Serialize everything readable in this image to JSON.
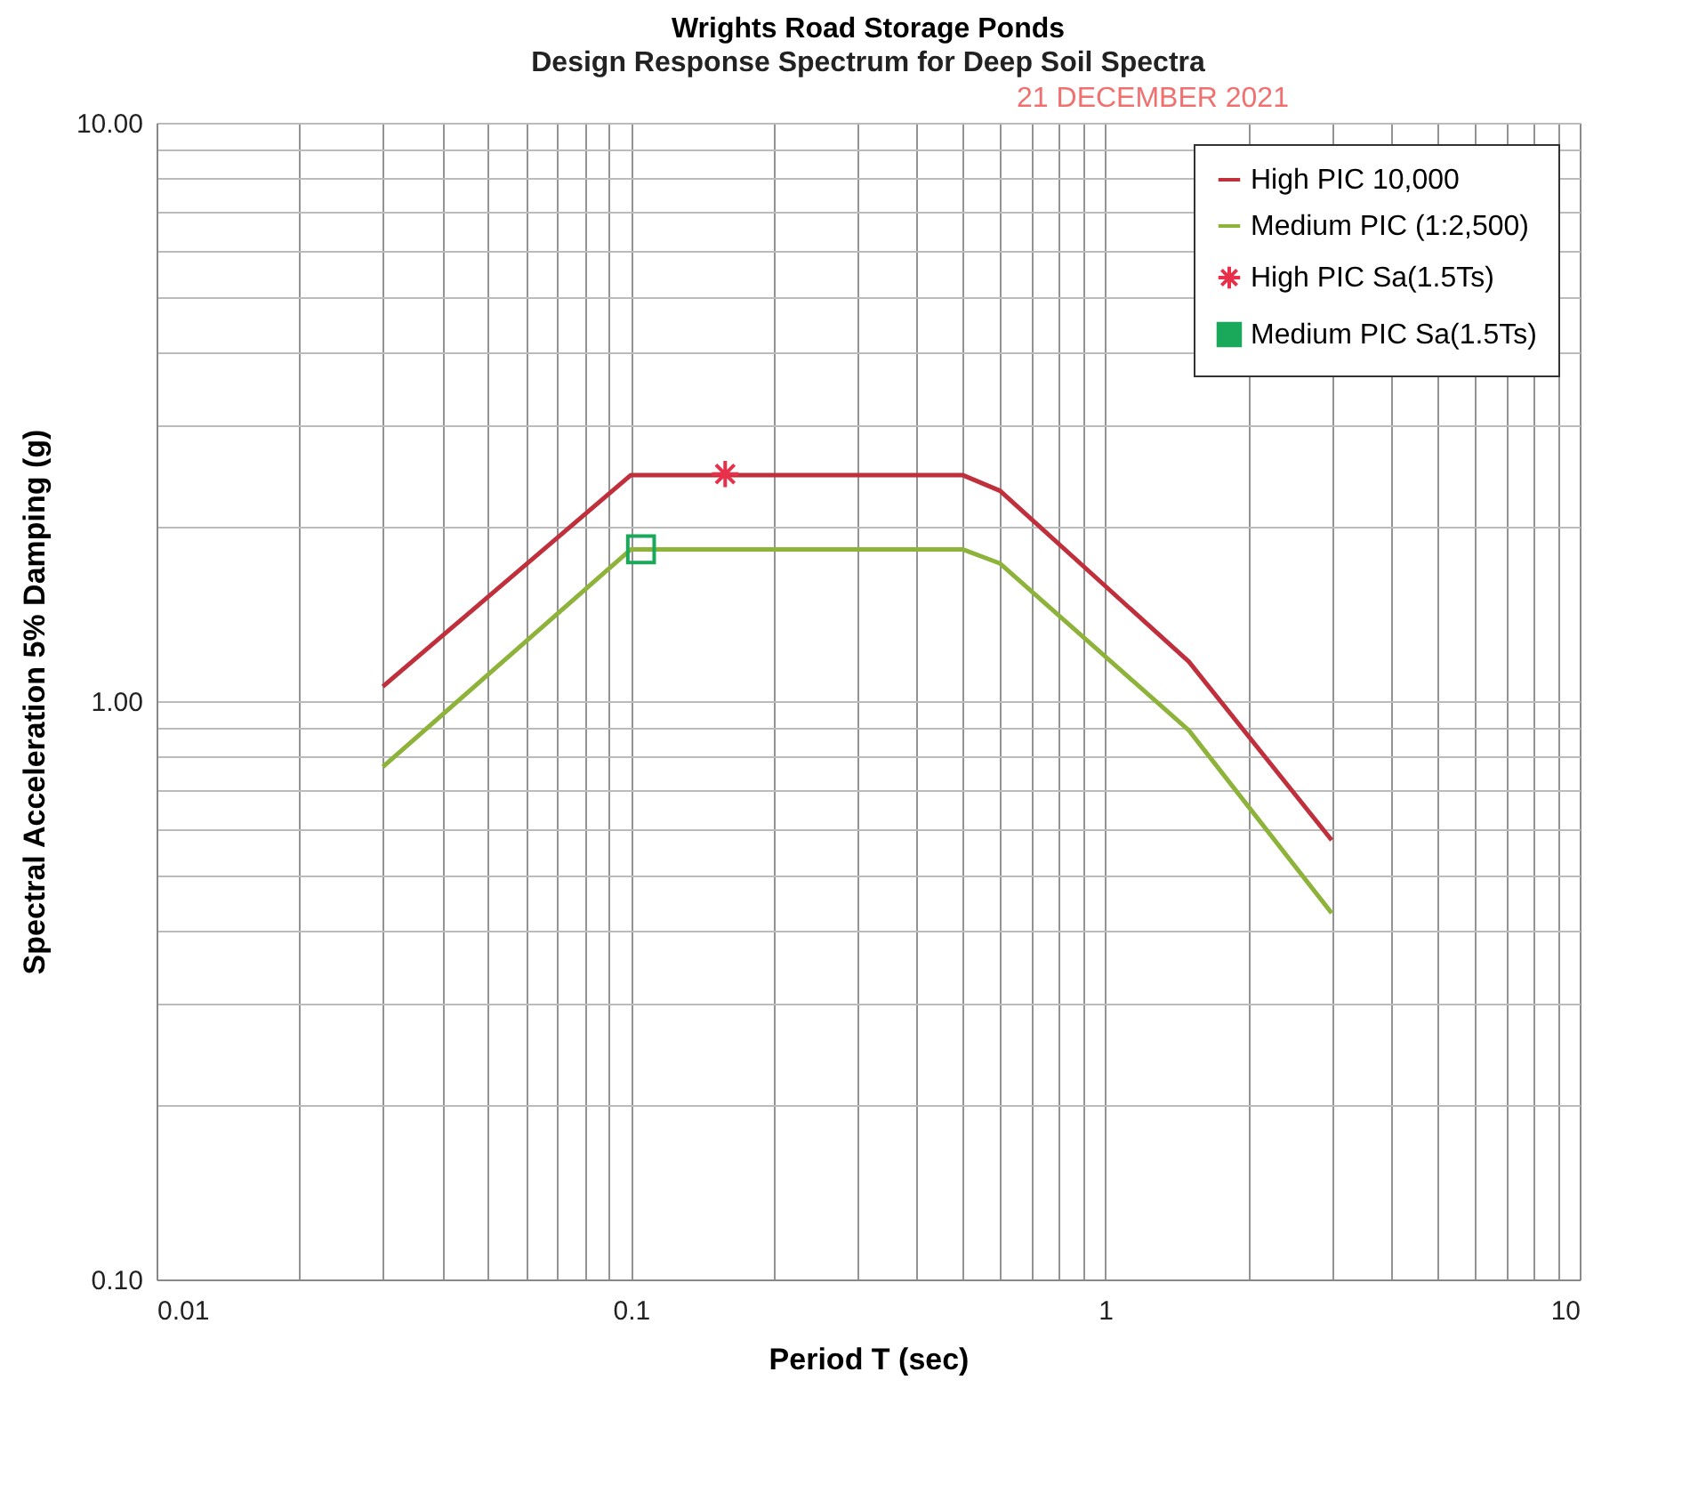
{
  "chart_data": {
    "type": "line",
    "title": "Wrights Road Storage Ponds",
    "subtitle": "Design Response Spectrum for Deep Soil Spectra",
    "xlabel": "Period T (sec)",
    "ylabel": "Spectral Acceleration 5% Damping (g)",
    "annotations": [
      "21 DECEMBER 2021"
    ],
    "series": [
      {
        "name": "High PIC 10,000",
        "color": "#c0303c",
        "marker": "none",
        "x": [
          0.03,
          0.1,
          0.5,
          0.6,
          1.5,
          3
        ],
        "values": [
          1.06,
          2.46,
          2.46,
          2.31,
          1.17,
          0.575
        ]
      },
      {
        "name": "Medium PIC (1:2,500)",
        "color": "#8db33a",
        "marker": "none",
        "x": [
          0.03,
          0.1,
          0.5,
          0.6,
          1.5,
          3
        ],
        "values": [
          0.77,
          1.83,
          1.83,
          1.73,
          0.89,
          0.43
        ]
      },
      {
        "name": "High PIC Sa(1.5Ts)",
        "color": "#e8304a",
        "type": "scatter",
        "marker": "cross",
        "x": [
          0.158
        ],
        "values": [
          2.47
        ]
      },
      {
        "name": "Medium PIC Sa(1.5Ts)",
        "color": "#1aa85a",
        "type": "scatter",
        "marker": "square",
        "x": [
          0.105
        ],
        "values": [
          1.83
        ]
      }
    ],
    "log": "xy",
    "xlim": [
      0.01,
      10
    ],
    "ylim": [
      0.1,
      10
    ],
    "xticks": [
      0.01,
      {
        "value": 0.02,
        "label": null
      },
      {
        "value": 0.03,
        "label": null
      },
      {
        "value": 0.04,
        "label": null
      },
      {
        "value": 0.05,
        "label": null
      },
      {
        "value": 0.06,
        "label": null
      },
      {
        "value": 0.07,
        "label": null
      },
      {
        "value": 0.08,
        "label": null
      },
      {
        "value": 0.09,
        "label": null
      },
      0.1,
      {
        "value": 0.2,
        "label": null
      },
      {
        "value": 0.3,
        "label": null
      },
      {
        "value": 0.4,
        "label": null
      },
      {
        "value": 0.5,
        "label": null
      },
      {
        "value": 0.6,
        "label": null
      },
      {
        "value": 0.7,
        "label": null
      },
      {
        "value": 0.8,
        "label": null
      },
      {
        "value": 0.9,
        "label": null
      },
      1,
      {
        "value": 2,
        "label": null
      },
      {
        "value": 3,
        "label": null
      },
      {
        "value": 4,
        "label": null
      },
      {
        "value": 5,
        "label": null
      },
      {
        "value": 6,
        "label": null
      },
      {
        "value": 7,
        "label": null
      },
      {
        "value": 8,
        "label": null
      },
      {
        "value": 9,
        "label": null
      },
      10
    ],
    "yticks": [
      {
        "value": 0.1,
        "label": "0.10"
      },
      {
        "value": 0.2,
        "label": null
      },
      {
        "value": 0.3,
        "label": null
      },
      {
        "value": 0.4,
        "label": null
      },
      {
        "value": 0.5,
        "label": null
      },
      {
        "value": 0.6,
        "label": null
      },
      {
        "value": 0.7,
        "label": null
      },
      {
        "value": 0.8,
        "label": null
      },
      {
        "value": 0.9,
        "label": null
      },
      {
        "value": 1,
        "label": "1.00"
      },
      {
        "value": 2,
        "label": null
      },
      {
        "value": 3,
        "label": null
      },
      {
        "value": 4,
        "label": null
      },
      {
        "value": 5,
        "label": null
      },
      {
        "value": 6,
        "label": null
      },
      {
        "value": 7,
        "label": null
      },
      {
        "value": 8,
        "label": null
      },
      {
        "value": 9,
        "label": null
      },
      {
        "value": 10,
        "label": "10.00"
      }
    ],
    "grid": true,
    "legend": "top right"
  }
}
